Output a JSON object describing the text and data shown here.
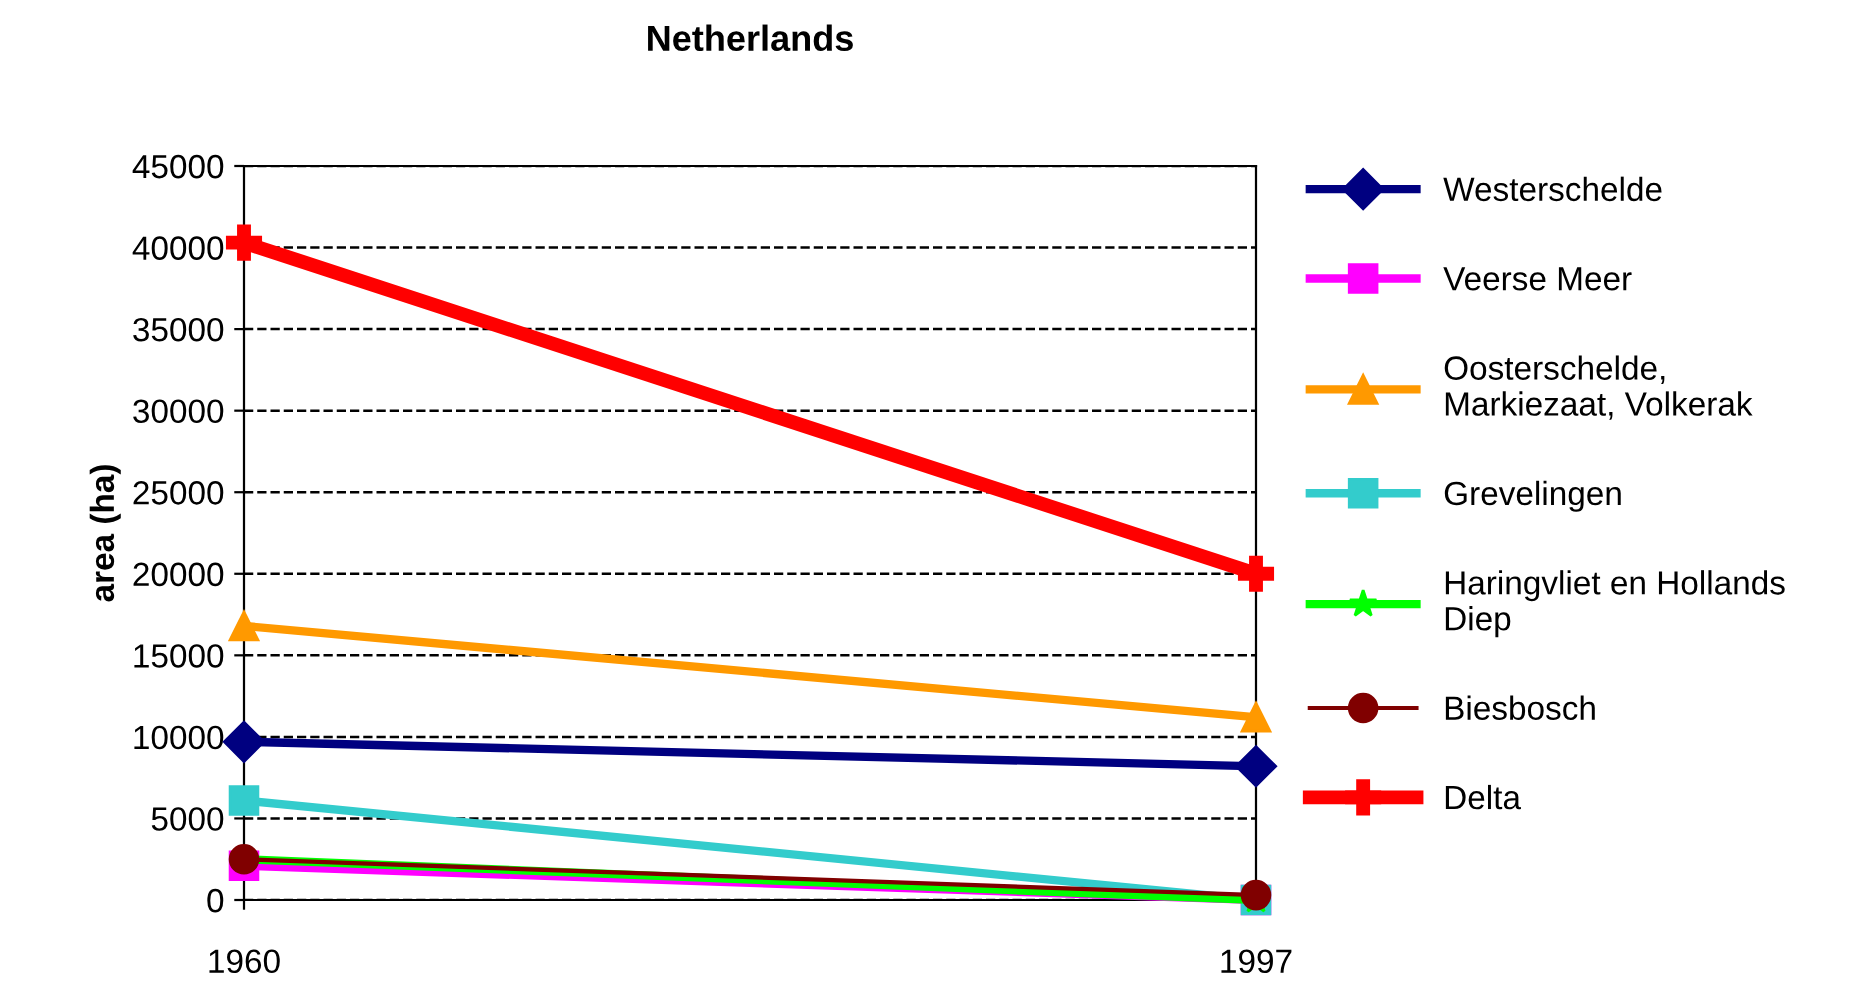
{
  "chart_data": {
    "type": "line",
    "title": "Netherlands",
    "ylabel": "area (ha)",
    "x": [
      1960,
      1997
    ],
    "series": [
      {
        "name": "Westerschelde",
        "color": "#000080",
        "marker": "diamond",
        "values": [
          9700,
          8200
        ]
      },
      {
        "name": "Veerse Meer",
        "color": "#ff00ff",
        "marker": "square",
        "values": [
          2100,
          0
        ]
      },
      {
        "name": "Oosterschelde,\nMarkiezaat, Volkerak",
        "color": "#ff9900",
        "marker": "triangle",
        "values": [
          16800,
          11200
        ]
      },
      {
        "name": "Grevelingen",
        "color": "#33cccc",
        "marker": "square",
        "values": [
          6100,
          0
        ]
      },
      {
        "name": "Haringvliet en Hollands\nDiep",
        "color": "#00ff00",
        "marker": "star",
        "values": [
          2500,
          0
        ]
      },
      {
        "name": "Biesbosch",
        "color": "#800000",
        "marker": "circle",
        "values": [
          2500,
          300
        ]
      },
      {
        "name": "Delta",
        "color": "#ff0000",
        "marker": "cross",
        "values": [
          40300,
          20000
        ]
      }
    ],
    "xlim": [
      1960,
      1997
    ],
    "xticks": [
      1960,
      1997
    ],
    "ylim": [
      0,
      45000
    ],
    "yticks": [
      0,
      5000,
      10000,
      15000,
      20000,
      25000,
      30000,
      35000,
      40000,
      45000
    ],
    "grid": "y",
    "legend": "right",
    "line_style": "solid"
  }
}
